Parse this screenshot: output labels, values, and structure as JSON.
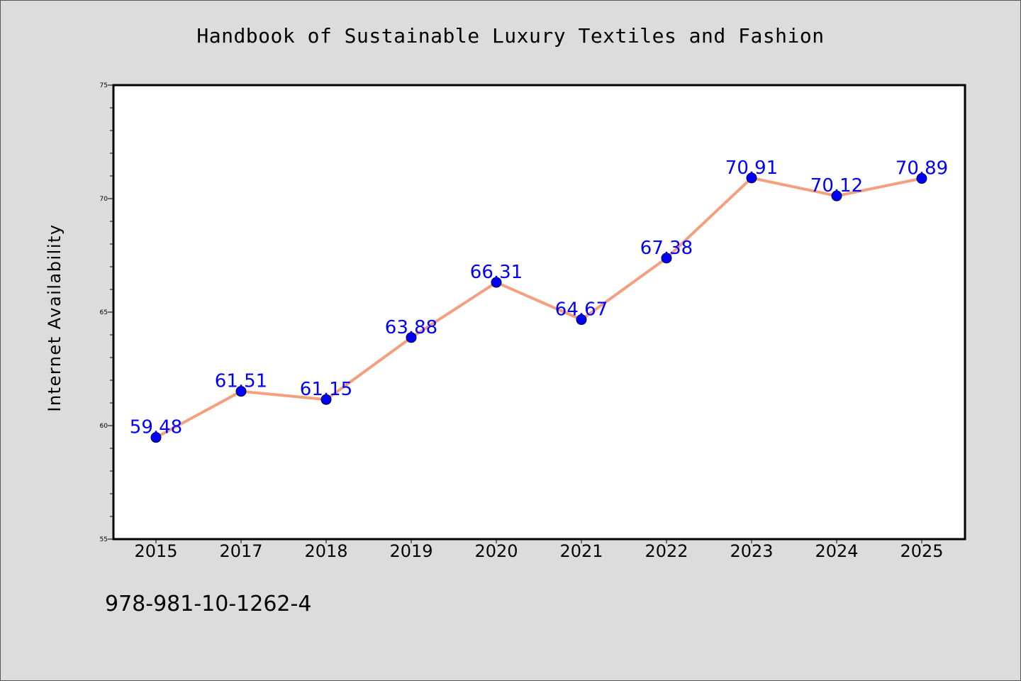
{
  "chart_data": {
    "type": "line",
    "title": "Handbook of Sustainable Luxury Textiles and Fashion",
    "xlabel": "",
    "ylabel": "Internet Availability",
    "categories": [
      "2015",
      "2017",
      "2018",
      "2019",
      "2020",
      "2021",
      "2022",
      "2023",
      "2024",
      "2025"
    ],
    "values": [
      59.48,
      61.51,
      61.15,
      63.88,
      66.31,
      64.67,
      67.38,
      70.91,
      70.12,
      70.89
    ],
    "value_labels": [
      "59.48",
      "61.51",
      "61.15",
      "63.88",
      "66.31",
      "64.67",
      "67.38",
      "70.91",
      "70.12",
      "70.89"
    ],
    "ylim": [
      55,
      75
    ],
    "yticks": [
      55,
      60,
      65,
      70,
      75
    ],
    "grid": false,
    "colors": {
      "line": "#f4a07f",
      "marker": "#0000ff",
      "data_label": "#0000ff",
      "plot_background": "#ffffff",
      "figure_background": "#dcdcdc"
    }
  },
  "footer": {
    "isbn": "978-981-10-1262-4"
  }
}
